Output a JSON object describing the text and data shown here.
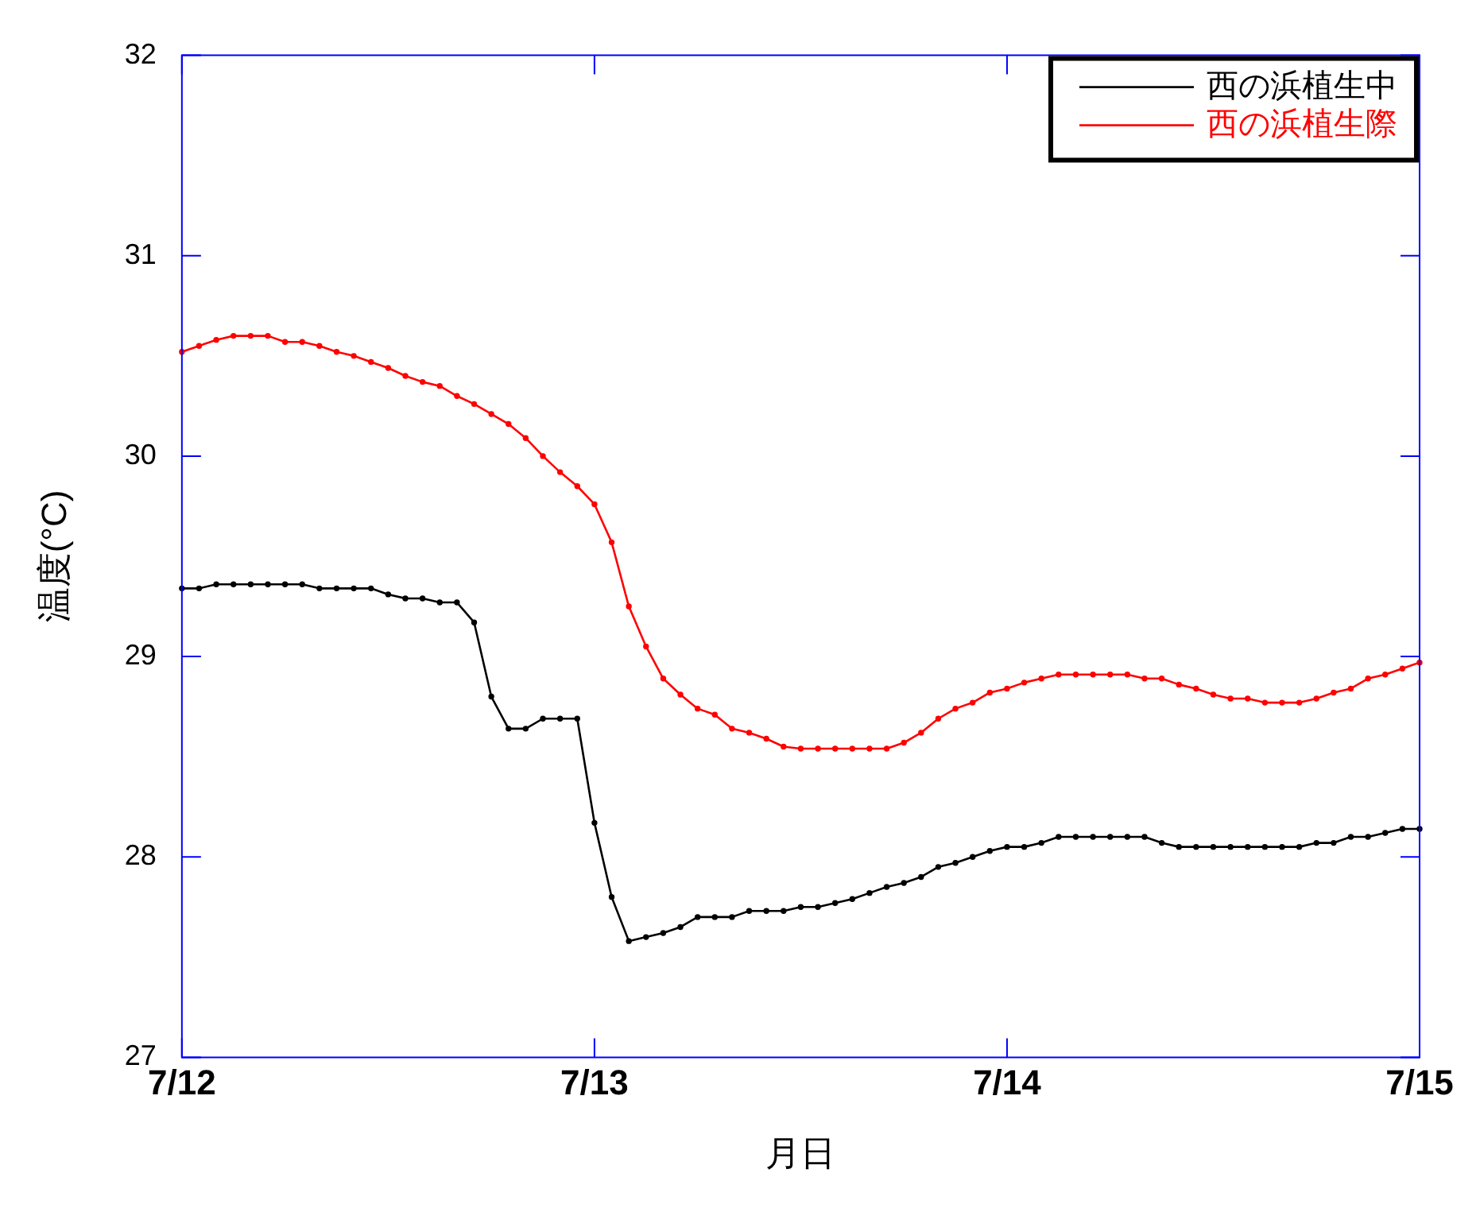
{
  "chart_data": {
    "type": "line",
    "xlabel": "月日",
    "ylabel": "温度(°C)",
    "categories": [
      "7/12",
      null,
      null,
      null,
      null,
      null,
      null,
      null,
      null,
      null,
      null,
      null,
      null,
      null,
      null,
      null,
      null,
      null,
      null,
      null,
      null,
      null,
      null,
      null,
      "7/13",
      null,
      null,
      null,
      null,
      null,
      null,
      null,
      null,
      null,
      null,
      null,
      null,
      null,
      null,
      null,
      null,
      null,
      null,
      null,
      null,
      null,
      null,
      null,
      "7/14",
      null,
      null,
      null,
      null,
      null,
      null,
      null,
      null,
      null,
      null,
      null,
      null,
      null,
      null,
      null,
      null,
      null,
      null,
      null,
      null,
      null,
      null,
      null,
      "7/15"
    ],
    "series": [
      {
        "name": "西の浜植生中",
        "color": "#000000",
        "values": [
          29.34,
          29.34,
          29.36,
          29.36,
          29.36,
          29.36,
          29.36,
          29.36,
          29.34,
          29.34,
          29.34,
          29.34,
          29.31,
          29.29,
          29.29,
          29.27,
          29.27,
          29.17,
          28.8,
          28.64,
          28.64,
          28.69,
          28.69,
          28.69,
          28.17,
          27.8,
          27.58,
          27.6,
          27.62,
          27.65,
          27.7,
          27.7,
          27.7,
          27.73,
          27.73,
          27.73,
          27.75,
          27.75,
          27.77,
          27.79,
          27.82,
          27.85,
          27.87,
          27.9,
          27.95,
          27.97,
          28.0,
          28.03,
          28.05,
          28.05,
          28.07,
          28.1,
          28.1,
          28.1,
          28.1,
          28.1,
          28.1,
          28.07,
          28.05,
          28.05,
          28.05,
          28.05,
          28.05,
          28.05,
          28.05,
          28.05,
          28.07,
          28.07,
          28.1,
          28.1,
          28.12,
          28.14,
          28.14
        ]
      },
      {
        "name": "西の浜植生際",
        "color": "#ff0000",
        "values": [
          30.52,
          30.55,
          30.58,
          30.6,
          30.6,
          30.6,
          30.57,
          30.57,
          30.55,
          30.52,
          30.5,
          30.47,
          30.44,
          30.4,
          30.37,
          30.35,
          30.3,
          30.26,
          30.21,
          30.16,
          30.09,
          30.0,
          29.92,
          29.85,
          29.76,
          29.57,
          29.25,
          29.05,
          28.89,
          28.81,
          28.74,
          28.71,
          28.64,
          28.62,
          28.59,
          28.55,
          28.54,
          28.54,
          28.54,
          28.54,
          28.54,
          28.54,
          28.57,
          28.62,
          28.69,
          28.74,
          28.77,
          28.82,
          28.84,
          28.87,
          28.89,
          28.91,
          28.91,
          28.91,
          28.91,
          28.91,
          28.89,
          28.89,
          28.86,
          28.84,
          28.81,
          28.79,
          28.79,
          28.77,
          28.77,
          28.77,
          28.79,
          28.82,
          28.84,
          28.89,
          28.91,
          28.94,
          28.97
        ]
      }
    ],
    "ylim": [
      27,
      32
    ],
    "yticks": [
      27,
      28,
      29,
      30,
      31,
      32
    ],
    "legend": "top right",
    "marker": "circle",
    "line_style": "solid",
    "grid": false
  }
}
